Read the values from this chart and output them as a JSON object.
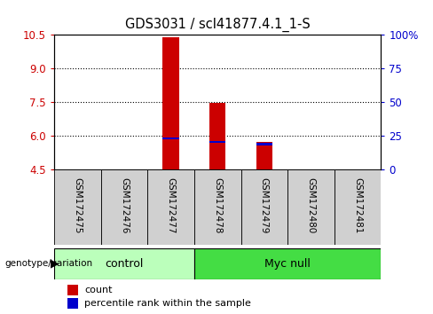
{
  "title": "GDS3031 / scl41877.4.1_1-S",
  "samples": [
    "GSM172475",
    "GSM172476",
    "GSM172477",
    "GSM172478",
    "GSM172479",
    "GSM172480",
    "GSM172481"
  ],
  "bar_values": [
    0,
    0,
    10.38,
    7.47,
    5.72,
    0,
    0
  ],
  "percentile_values": [
    0,
    0,
    5.88,
    5.73,
    5.63,
    0,
    0
  ],
  "ylim": [
    4.5,
    10.5
  ],
  "yticks_left": [
    4.5,
    6.0,
    7.5,
    9.0,
    10.5
  ],
  "yticks_right": [
    0,
    25,
    50,
    75,
    100
  ],
  "ytick_labels_right": [
    "0",
    "25",
    "50",
    "75",
    "100%"
  ],
  "bar_color": "#cc0000",
  "percentile_color": "#0000cc",
  "bar_width": 0.35,
  "ctrl_color": "#bbffbb",
  "myc_color": "#44dd44",
  "grid_color": "black",
  "tick_color_left": "#cc0000",
  "tick_color_right": "#0000cc",
  "spine_color": "black",
  "sample_bg": "#d0d0d0"
}
